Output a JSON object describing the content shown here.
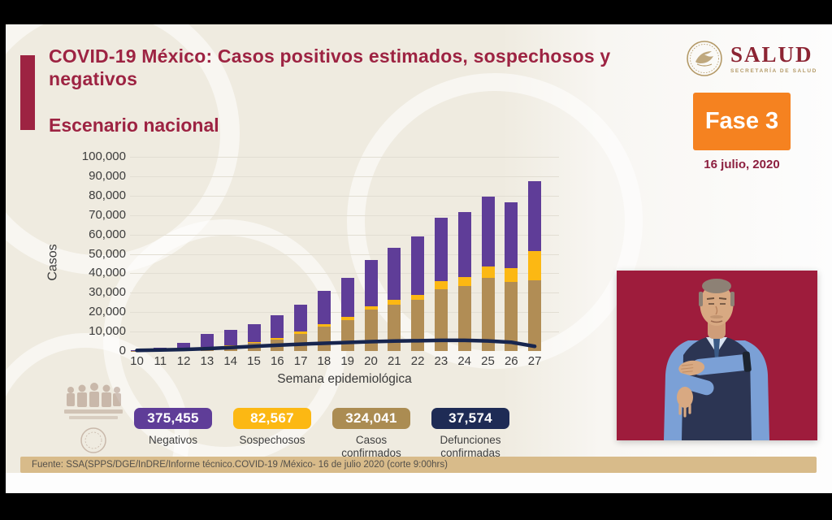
{
  "slide": {
    "title": "COVID-19 México: Casos positivos estimados, sospechosos y negativos",
    "subtitle": "Escenario nacional",
    "logo": {
      "name": "SALUD",
      "sub": "SECRETARÍA DE SALUD"
    },
    "phase_badge": "Fase 3",
    "date": "16 julio, 2020",
    "source": "Fuente: SSA(SPPS/DGE/InDRE/Informe técnico.COVID-19 /México- 16 de julio 2020 (corte 9:00hrs)"
  },
  "colors": {
    "maroon": "#9d2342",
    "phase_orange": "#f58220",
    "negativos_purple": "#5f3d98",
    "sospechosos_amber": "#fcb813",
    "confirmados_tan": "#b18d55",
    "defunciones_navy": "#17254e",
    "source_strip_tan": "#d8bb8a",
    "interpreter_bg": "#9e1c3c"
  },
  "chart_data": {
    "type": "bar",
    "stacked": true,
    "title": "Escenario nacional",
    "xlabel": "Semana epidemiológica",
    "ylabel": "Casos",
    "ylim": [
      0,
      100000
    ],
    "ytick_step": 10000,
    "grid": true,
    "categories": [
      "10",
      "11",
      "12",
      "13",
      "14",
      "15",
      "16",
      "17",
      "18",
      "19",
      "20",
      "21",
      "22",
      "23",
      "24",
      "25",
      "26",
      "27"
    ],
    "series": [
      {
        "name": "Casos confirmados",
        "color": "#b18d55",
        "values": [
          150,
          300,
          700,
          1500,
          2500,
          4000,
          6000,
          9000,
          12500,
          16000,
          21500,
          24000,
          26500,
          32000,
          33500,
          37500,
          35500,
          36500
        ]
      },
      {
        "name": "Sospechosos",
        "color": "#fcb813",
        "values": [
          100,
          150,
          300,
          500,
          600,
          800,
          900,
          1000,
          1200,
          1700,
          1500,
          2500,
          2200,
          3800,
          4500,
          6000,
          7000,
          15000
        ]
      },
      {
        "name": "Negativos",
        "color": "#5f3d98",
        "values": [
          250,
          1350,
          3300,
          7000,
          7900,
          9200,
          11600,
          14000,
          17300,
          19800,
          24000,
          26500,
          30300,
          32700,
          33500,
          36000,
          34000,
          36000
        ]
      }
    ],
    "line_series": {
      "name": "Defunciones confirmadas",
      "color": "#17254e",
      "values": [
        300,
        500,
        800,
        1200,
        1800,
        2400,
        3000,
        3500,
        4000,
        4400,
        4800,
        5100,
        5300,
        5500,
        5500,
        5200,
        4500,
        2400
      ]
    },
    "legend_position": "bottom"
  },
  "legend": {
    "items": [
      {
        "value": "375,455",
        "label": "Negativos",
        "color": "#5f3d98"
      },
      {
        "value": "82,567",
        "label": "Sospechosos",
        "color": "#fcb813"
      },
      {
        "value": "324,041",
        "label": "Casos confirmados",
        "color": "#ab8c52"
      },
      {
        "value": "37,574",
        "label": "Defunciones confirmadas",
        "color": "#1e2b55"
      }
    ]
  }
}
